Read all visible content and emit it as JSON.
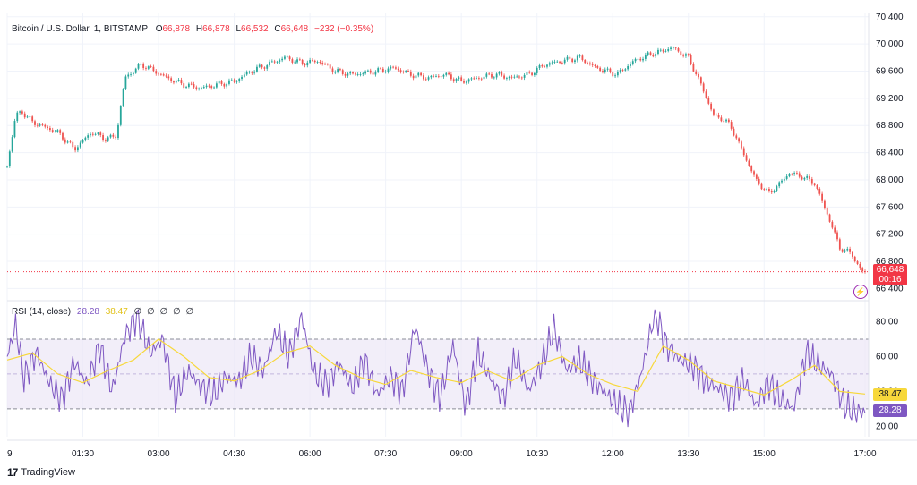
{
  "header": {
    "symbol": "Bitcoin / U.S. Dollar, 1, BITSTAMP",
    "o_label": "O",
    "o_value": "66,878",
    "h_label": "H",
    "h_value": "66,878",
    "l_label": "L",
    "l_value": "66,532",
    "c_label": "C",
    "c_value": "66,648",
    "change": "−232 (−0.35%)"
  },
  "price_tag": {
    "price": "66,648",
    "countdown": "00:16"
  },
  "rsi_legend": {
    "label": "RSI (14, close)",
    "rsi_value": "28.28",
    "ma_value": "38.47",
    "hidden_marks": [
      "∅",
      "∅",
      "∅",
      "∅",
      "∅"
    ]
  },
  "rsi_tags": {
    "ma": "38.47",
    "rsi": "28.28"
  },
  "brand": {
    "name": "TradingView"
  },
  "colors": {
    "up": "#26a69a",
    "down": "#ef5350",
    "rsi_line": "#7e57c2",
    "rsi_ma": "#f7d83b",
    "band": "#ede7f6",
    "accent_red": "#f23645"
  },
  "chart_data": [
    {
      "type": "line",
      "title": "Bitcoin / U.S. Dollar, 1, BITSTAMP",
      "ylim": [
        66300,
        70450
      ],
      "yticks": [
        "70,400",
        "70,000",
        "69,600",
        "69,200",
        "68,800",
        "68,400",
        "68,000",
        "67,600",
        "67,200",
        "66,800",
        "66,400"
      ],
      "x_ticks": [
        "9",
        "01:30",
        "03:00",
        "04:30",
        "06:00",
        "07:30",
        "09:00",
        "10:30",
        "12:00",
        "13:30",
        "15:00",
        "17:00"
      ],
      "series": [
        {
          "x": [
            "00:00",
            "00:10",
            "00:18",
            "00:30",
            "01:00",
            "01:20",
            "01:40",
            "01:58",
            "02:10",
            "02:20",
            "02:40",
            "03:10",
            "03:30",
            "03:50",
            "04:10",
            "04:30",
            "04:50",
            "05:10",
            "05:30",
            "05:50",
            "06:10",
            "06:30",
            "06:50",
            "07:20",
            "07:40",
            "08:00",
            "08:20",
            "08:40",
            "09:00",
            "09:20",
            "09:40",
            "10:00",
            "10:20",
            "10:40",
            "11:00",
            "11:20",
            "11:40",
            "12:05",
            "12:25",
            "12:45",
            "13:00",
            "13:10",
            "13:30",
            "13:45",
            "14:00",
            "14:10",
            "14:20",
            "14:35",
            "14:50",
            "15:05",
            "15:15",
            "15:30",
            "15:45",
            "16:00",
            "16:15",
            "16:30",
            "16:45",
            "16:55",
            "17:00"
          ],
          "values": [
            68200,
            68950,
            69000,
            68850,
            68700,
            68450,
            68700,
            68600,
            68650,
            69500,
            69700,
            69500,
            69400,
            69350,
            69400,
            69450,
            69600,
            69700,
            69800,
            69720,
            69750,
            69600,
            69550,
            69600,
            69650,
            69550,
            69500,
            69550,
            69450,
            69500,
            69550,
            69500,
            69550,
            69700,
            69750,
            69800,
            69650,
            69550,
            69750,
            69850,
            69900,
            69950,
            69800,
            69400,
            68950,
            68900,
            68800,
            68400,
            68000,
            67800,
            67900,
            68100,
            68050,
            67950,
            67500,
            67000,
            66900,
            66650,
            66648
          ]
        }
      ]
    },
    {
      "type": "line",
      "title": "RSI (14, close)",
      "ylim": [
        14,
        90
      ],
      "yticks": [
        "80.00",
        "60.00",
        "40.00",
        "20.00"
      ],
      "bands": [
        30,
        50,
        70
      ],
      "x_ticks": [
        "9",
        "01:30",
        "03:00",
        "04:30",
        "06:00",
        "07:30",
        "09:00",
        "10:30",
        "12:00",
        "13:30",
        "15:00",
        "17:00"
      ],
      "series": [
        {
          "name": "RSI",
          "x": [
            "00:00",
            "00:10",
            "00:20",
            "00:35",
            "00:50",
            "01:05",
            "01:20",
            "01:35",
            "01:50",
            "02:05",
            "02:20",
            "02:35",
            "02:50",
            "03:05",
            "03:20",
            "03:35",
            "03:50",
            "04:05",
            "04:20",
            "04:35",
            "04:50",
            "05:05",
            "05:20",
            "05:35",
            "05:50",
            "06:05",
            "06:20",
            "06:35",
            "06:50",
            "07:05",
            "07:20",
            "07:35",
            "07:50",
            "08:05",
            "08:20",
            "08:35",
            "08:50",
            "09:05",
            "09:20",
            "09:35",
            "09:50",
            "10:05",
            "10:20",
            "10:35",
            "10:50",
            "11:05",
            "11:20",
            "11:35",
            "11:50",
            "12:05",
            "12:20",
            "12:35",
            "12:50",
            "13:05",
            "13:20",
            "13:35",
            "13:50",
            "14:05",
            "14:20",
            "14:35",
            "14:50",
            "15:05",
            "15:20",
            "15:35",
            "15:50",
            "16:05",
            "16:20",
            "16:35",
            "16:50",
            "17:00"
          ],
          "values": [
            60,
            78,
            48,
            62,
            45,
            35,
            57,
            44,
            66,
            40,
            72,
            83,
            62,
            70,
            36,
            52,
            43,
            38,
            48,
            45,
            60,
            52,
            75,
            60,
            83,
            50,
            44,
            56,
            42,
            58,
            38,
            48,
            40,
            78,
            52,
            36,
            67,
            31,
            62,
            47,
            36,
            60,
            40,
            55,
            76,
            52,
            58,
            47,
            40,
            32,
            28,
            52,
            86,
            65,
            58,
            55,
            46,
            42,
            36,
            47,
            32,
            45,
            35,
            30,
            62,
            55,
            50,
            32,
            28,
            28.28
          ]
        },
        {
          "name": "RSI MA",
          "x": [
            "00:00",
            "00:30",
            "01:00",
            "01:30",
            "02:00",
            "02:30",
            "03:00",
            "03:30",
            "04:00",
            "04:30",
            "05:00",
            "05:30",
            "06:00",
            "06:30",
            "07:00",
            "07:30",
            "08:00",
            "08:30",
            "09:00",
            "09:30",
            "10:00",
            "10:30",
            "11:00",
            "11:30",
            "12:00",
            "12:30",
            "13:00",
            "13:30",
            "14:00",
            "14:30",
            "15:00",
            "15:30",
            "16:00",
            "16:30",
            "17:00"
          ],
          "values": [
            58,
            62,
            50,
            45,
            52,
            58,
            70,
            60,
            48,
            46,
            52,
            62,
            66,
            55,
            48,
            44,
            52,
            48,
            45,
            52,
            46,
            55,
            60,
            50,
            44,
            40,
            66,
            58,
            46,
            42,
            38,
            46,
            55,
            40,
            38.47
          ]
        }
      ]
    }
  ]
}
